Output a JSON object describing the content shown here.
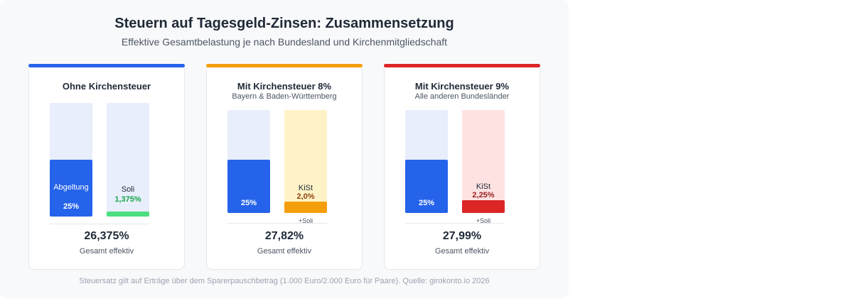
{
  "header": {
    "title": "Steuern auf Tagesgeld-Zinsen: Zusammensetzung",
    "subtitle": "Effektive Gesamtbelastung je nach Bundesland und Kirchenmitgliedschaft"
  },
  "cards": [
    {
      "title": "Ohne Kirchensteuer",
      "bars": [
        {
          "label": "Abgeltung",
          "value": "25%"
        },
        {
          "label": "Soli",
          "value": "1,375%"
        }
      ],
      "total": "26,375%",
      "total_label": "Gesamt effektiv"
    },
    {
      "title": "Mit Kirchensteuer 8%",
      "subtitle": "Bayern & Baden-Württemberg",
      "bars": [
        {
          "value": "25%"
        },
        {
          "label": "KiSt",
          "value": "2,0%",
          "note": "+Soli"
        }
      ],
      "total": "27,82%",
      "total_label": "Gesamt effektiv"
    },
    {
      "title": "Mit Kirchensteuer 9%",
      "subtitle": "Alle anderen Bundesländer",
      "bars": [
        {
          "value": "25%"
        },
        {
          "label": "KiSt",
          "value": "2,25%",
          "note": "+Soli"
        }
      ],
      "total": "27,99%",
      "total_label": "Gesamt effektiv"
    }
  ],
  "footer": "Steuersatz gilt auf Erträge über dem Sparerpauschbetrag (1.000 Euro/2.000 Euro für Paare). Quelle: girokonto.io 2026"
}
